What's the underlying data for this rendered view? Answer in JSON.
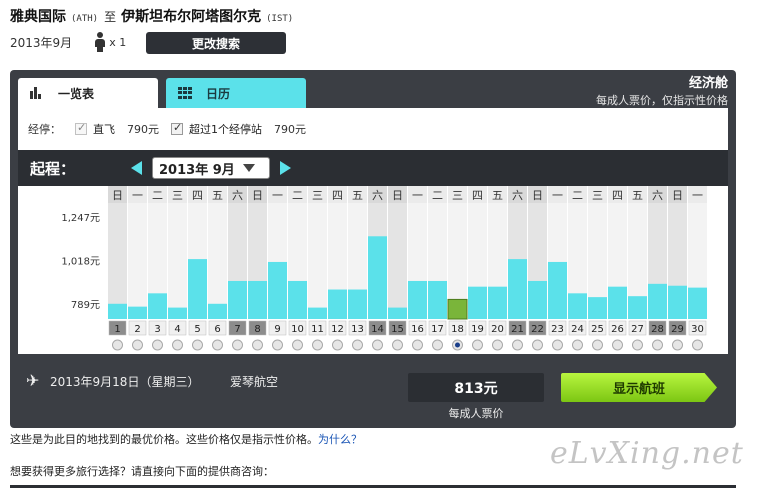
{
  "header": {
    "origin_city": "雅典国际",
    "origin_code": "(ATH)",
    "connector": "至",
    "dest_city": "伊斯坦布尔阿塔图尔克",
    "dest_code": "(IST)",
    "month": "2013年9月",
    "pax_count": "x 1",
    "change_search_label": "更改搜索",
    "pax_icon": "person-icon"
  },
  "tabs": [
    {
      "label": "一览表",
      "icon": "bar-chart-icon",
      "active": true
    },
    {
      "label": "日历",
      "icon": "calendar-grid-icon",
      "active": false
    }
  ],
  "cabin": {
    "title": "经济舱",
    "note": "每成人票价，仅指示性价格"
  },
  "filter": {
    "label": "经停：",
    "options": [
      {
        "label": "直飞",
        "price": "790元",
        "checked": true,
        "disabled": true
      },
      {
        "label": "超过1个经停站",
        "price": "790元",
        "checked": true,
        "disabled": false
      }
    ]
  },
  "date_nav": {
    "label": "起程：",
    "selected_month": "2013年  9月"
  },
  "chart_data": {
    "type": "bar",
    "weekdays": [
      "日",
      "一",
      "二",
      "三",
      "四",
      "五",
      "六",
      "日",
      "一",
      "二",
      "三",
      "四",
      "五",
      "六",
      "日",
      "一",
      "二",
      "三",
      "四",
      "五",
      "六",
      "日",
      "一",
      "二",
      "三",
      "四",
      "五",
      "六",
      "日",
      "一"
    ],
    "categories": [
      "1",
      "2",
      "3",
      "4",
      "5",
      "6",
      "7",
      "8",
      "9",
      "10",
      "11",
      "12",
      "13",
      "14",
      "15",
      "16",
      "17",
      "18",
      "19",
      "20",
      "21",
      "22",
      "23",
      "24",
      "25",
      "26",
      "27",
      "28",
      "29",
      "30"
    ],
    "values": [
      790,
      775,
      845,
      770,
      1025,
      790,
      910,
      910,
      1010,
      910,
      770,
      865,
      865,
      1145,
      770,
      910,
      910,
      813,
      880,
      880,
      1025,
      910,
      1010,
      845,
      825,
      880,
      830,
      895,
      885,
      875
    ],
    "ylim": [
      710,
      1320
    ],
    "yticks": [
      {
        "label": "1,247元",
        "value": 1247
      },
      {
        "label": "1,018元",
        "value": 1018
      },
      {
        "label": "789元",
        "value": 789
      }
    ],
    "highlight_days": [
      1,
      7,
      8,
      14,
      15,
      21,
      22,
      28,
      29
    ],
    "selected_index": 17,
    "colors": {
      "bar": "#5be1ea",
      "selected": "#7ab53a",
      "weekend_band": "#d9d9d9",
      "weekday_band": "#ebebeb"
    }
  },
  "selection": {
    "date_text": "2013年9月18日（星期三）",
    "airline": "爱琴航空",
    "price": "813元",
    "price_note": "每成人票价",
    "show_flights_label": "显示航班",
    "plane_icon": "airplane-icon"
  },
  "info": {
    "text": "这些是为此目的地找到的最优价格。这些价格仅是指示性价格。",
    "link": "为什么？"
  },
  "more": "想要获得更多旅行选择？请直接向下面的提供商咨询：",
  "watermark": "eLvXing.net"
}
